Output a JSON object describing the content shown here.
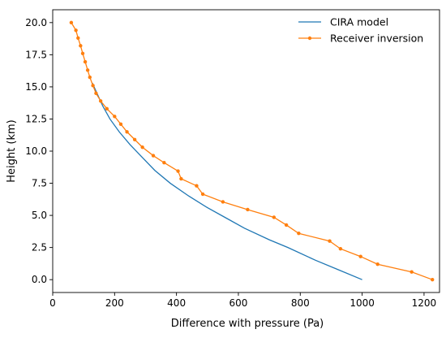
{
  "chart_data": {
    "type": "line",
    "xlabel": "Difference with pressure (Pa)",
    "ylabel": "Height (km)",
    "xlim": [
      0,
      1250
    ],
    "ylim": [
      -1.0,
      21.0
    ],
    "xticks": [
      0,
      200,
      400,
      600,
      800,
      1000,
      1200
    ],
    "yticks": [
      0.0,
      2.5,
      5.0,
      7.5,
      10.0,
      12.5,
      15.0,
      17.5,
      20.0
    ],
    "ytick_labels": [
      "0.0",
      "2.5",
      "5.0",
      "7.5",
      "10.0",
      "12.5",
      "15.0",
      "17.5",
      "20.0"
    ],
    "grid": false,
    "legend_position": "top-right",
    "series": [
      {
        "name": "CIRA model",
        "color": "#1f77b4",
        "marker": "none",
        "points": [
          [
            1000,
            0.0
          ],
          [
            920,
            0.8
          ],
          [
            850,
            1.5
          ],
          [
            760,
            2.5
          ],
          [
            700,
            3.1
          ],
          [
            620,
            4.0
          ],
          [
            560,
            4.8
          ],
          [
            500,
            5.6
          ],
          [
            440,
            6.5
          ],
          [
            380,
            7.5
          ],
          [
            330,
            8.5
          ],
          [
            290,
            9.5
          ],
          [
            250,
            10.5
          ],
          [
            215,
            11.5
          ],
          [
            185,
            12.5
          ],
          [
            162,
            13.5
          ],
          [
            143,
            14.5
          ],
          [
            128,
            15.3
          ]
        ]
      },
      {
        "name": "Receiver inversion",
        "color": "#ff7f0e",
        "marker": "dot",
        "points": [
          [
            1227,
            0.0
          ],
          [
            1160,
            0.6
          ],
          [
            1050,
            1.2
          ],
          [
            995,
            1.8
          ],
          [
            930,
            2.4
          ],
          [
            895,
            3.0
          ],
          [
            795,
            3.6
          ],
          [
            755,
            4.25
          ],
          [
            715,
            4.85
          ],
          [
            630,
            5.45
          ],
          [
            550,
            6.05
          ],
          [
            485,
            6.65
          ],
          [
            465,
            7.3
          ],
          [
            415,
            7.85
          ],
          [
            405,
            8.45
          ],
          [
            360,
            9.1
          ],
          [
            325,
            9.65
          ],
          [
            290,
            10.3
          ],
          [
            265,
            10.9
          ],
          [
            240,
            11.5
          ],
          [
            220,
            12.1
          ],
          [
            200,
            12.7
          ],
          [
            175,
            13.3
          ],
          [
            155,
            13.9
          ],
          [
            140,
            14.5
          ],
          [
            130,
            15.1
          ],
          [
            120,
            15.75
          ],
          [
            113,
            16.3
          ],
          [
            105,
            16.95
          ],
          [
            97,
            17.6
          ],
          [
            90,
            18.2
          ],
          [
            82,
            18.8
          ],
          [
            75,
            19.4
          ],
          [
            60,
            20.0
          ]
        ]
      }
    ]
  }
}
